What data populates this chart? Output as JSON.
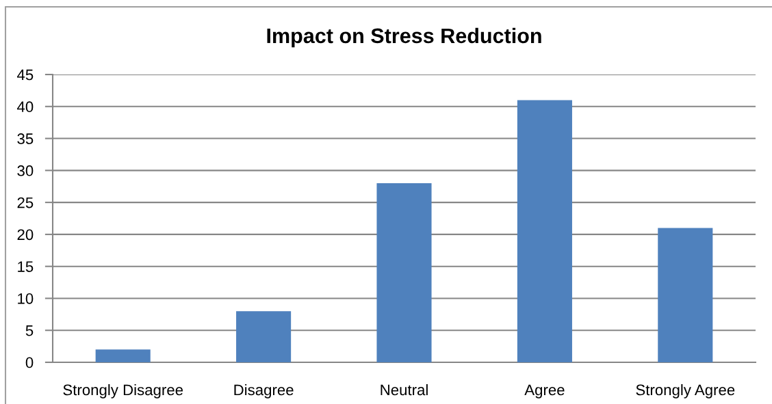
{
  "chart_data": {
    "type": "bar",
    "title": "Impact on Stress Reduction",
    "categories": [
      "Strongly Disagree",
      "Disagree",
      "Neutral",
      "Agree",
      "Strongly Agree"
    ],
    "values": [
      2,
      8,
      28,
      41,
      21
    ],
    "color": "#4f81bd",
    "ylim": [
      0,
      45
    ],
    "yticks": [
      0,
      5,
      10,
      15,
      20,
      25,
      30,
      35,
      40,
      45
    ],
    "grid": "y",
    "legend": false
  }
}
